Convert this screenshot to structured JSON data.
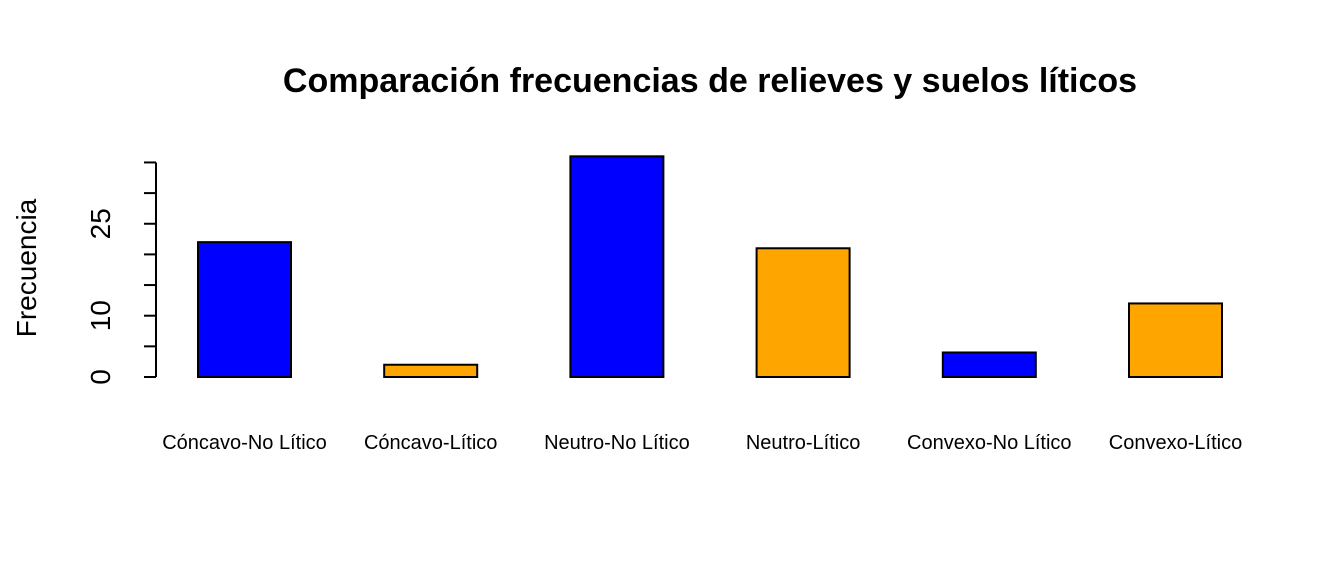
{
  "chart_data": {
    "type": "bar",
    "title": "Comparación frecuencias de relieves y suelos líticos",
    "xlabel": "",
    "ylabel": "Frecuencia",
    "categories": [
      "Cóncavo-No Lítico",
      "Cóncavo-Lítico",
      "Neutro-No Lítico",
      "Neutro-Lítico",
      "Convexo-No Lítico",
      "Convexo-Lítico"
    ],
    "values": [
      22,
      2,
      36,
      21,
      4,
      12
    ],
    "bar_colors": [
      "#0000FF",
      "#FFA500",
      "#0000FF",
      "#FFA500",
      "#0000FF",
      "#FFA500"
    ],
    "yticks": [
      0,
      5,
      10,
      15,
      20,
      25,
      30,
      35
    ],
    "ytick_labels_shown": [
      "0",
      "10",
      "25"
    ],
    "ylim": [
      0,
      35
    ],
    "grid": false,
    "legend": "none"
  }
}
